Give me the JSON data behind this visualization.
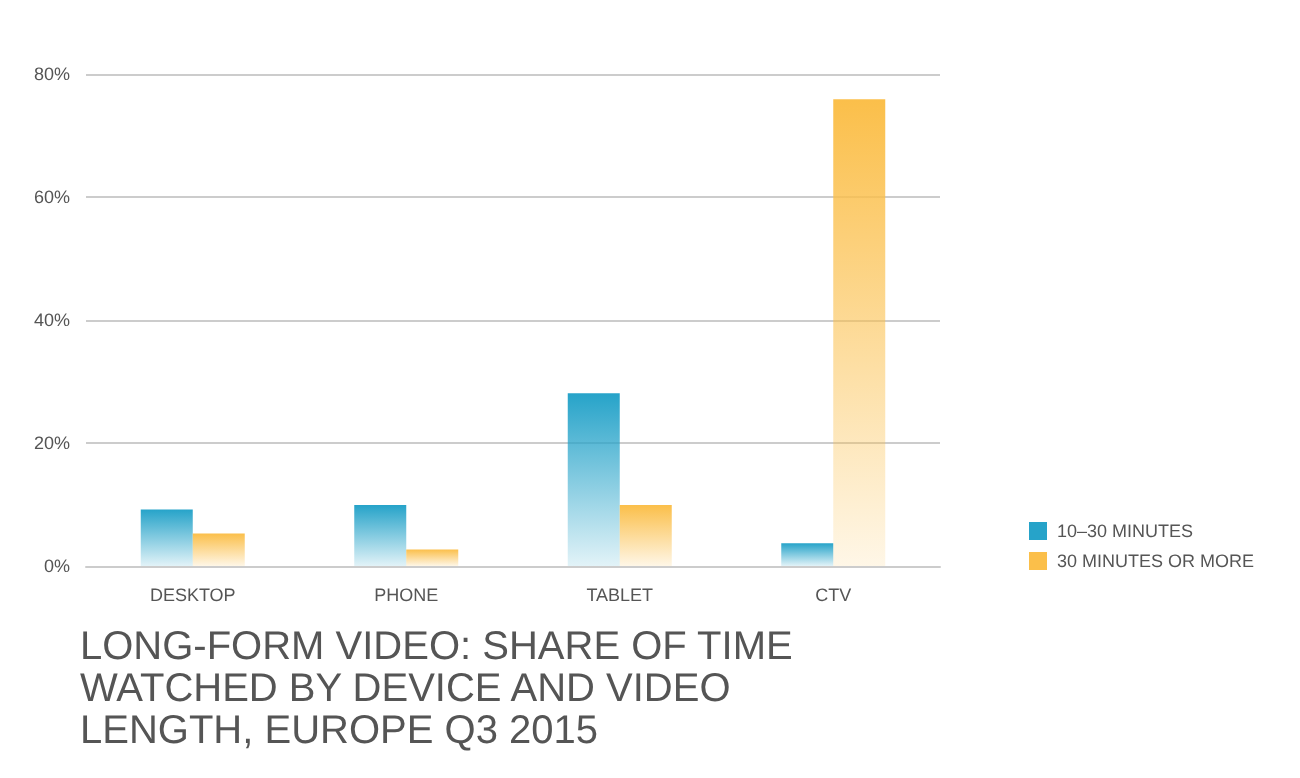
{
  "chart_data": {
    "type": "bar",
    "title": "LONG-FORM VIDEO: SHARE OF TIME WATCHED BY DEVICE AND VIDEO LENGTH, EUROPE Q3 2015",
    "categories": [
      "DESKTOP",
      "PHONE",
      "TABLET",
      "CTV"
    ],
    "series": [
      {
        "name": "10–30 MINUTES",
        "color": "#26a3c9",
        "values": [
          9.2,
          9.9,
          28.1,
          3.7
        ]
      },
      {
        "name": "30 MINUTES OR MORE",
        "color": "#fbbf4a",
        "values": [
          5.3,
          2.7,
          9.9,
          75.9
        ]
      }
    ],
    "ylim": [
      0,
      80
    ],
    "yticks": [
      {
        "value": 0,
        "label": "0%"
      },
      {
        "value": 20,
        "label": "20%"
      },
      {
        "value": 40,
        "label": "40%"
      },
      {
        "value": 60,
        "label": "60%"
      },
      {
        "value": 80,
        "label": "80%"
      }
    ],
    "grid": "y",
    "legend": "right"
  }
}
